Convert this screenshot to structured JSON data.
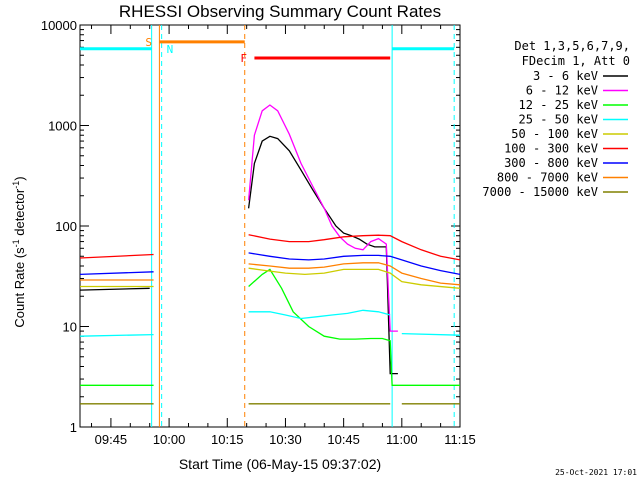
{
  "chart_data": {
    "type": "line",
    "title": "RHESSI Observing Summary Count Rates",
    "xlabel": "Start Time (06-May-15 09:37:02)",
    "ylabel_main": "Count Rate (s",
    "ylabel_sup1": "-1",
    "ylabel_mid": " detector",
    "ylabel_sup2": "-1",
    "ylabel_end": ")",
    "yscale": "log",
    "ylim": [
      1,
      10000
    ],
    "xlim_minutes": [
      37.03,
      135
    ],
    "x_ticks": [
      {
        "min": 45,
        "label": "09:45"
      },
      {
        "min": 60,
        "label": "10:00"
      },
      {
        "min": 75,
        "label": "10:15"
      },
      {
        "min": 90,
        "label": "10:30"
      },
      {
        "min": 105,
        "label": "10:45"
      },
      {
        "min": 120,
        "label": "11:00"
      },
      {
        "min": 135,
        "label": "11:15"
      }
    ],
    "y_ticks": [
      {
        "value": 1,
        "label": "1"
      },
      {
        "value": 10,
        "label": "10"
      },
      {
        "value": 100,
        "label": "100"
      },
      {
        "value": 1000,
        "label": "1000"
      },
      {
        "value": 10000,
        "label": "10000"
      }
    ],
    "legend_header": [
      "Det 1,3,5,6,7,9,",
      "FDecim 1, Att 0"
    ],
    "legend_position": "right",
    "series": [
      {
        "name": "3 - 6 keV",
        "color": "#000000",
        "points": [
          [
            37.03,
            23
          ],
          [
            55,
            24
          ],
          [
            56,
            null
          ],
          [
            80,
            null
          ],
          [
            80.5,
            150
          ],
          [
            82,
            420
          ],
          [
            84,
            700
          ],
          [
            86,
            780
          ],
          [
            88,
            740
          ],
          [
            91,
            560
          ],
          [
            94,
            360
          ],
          [
            97,
            230
          ],
          [
            100,
            150
          ],
          [
            103,
            100
          ],
          [
            105,
            85
          ],
          [
            107,
            80
          ],
          [
            109,
            74
          ],
          [
            111,
            66
          ],
          [
            113,
            62
          ],
          [
            116,
            62
          ],
          [
            117,
            3.4
          ],
          [
            119,
            3.4
          ],
          [
            119.5,
            null
          ]
        ]
      },
      {
        "name": "6 - 12 keV",
        "color": "#ff00ff",
        "points": [
          [
            80.5,
            180
          ],
          [
            82,
            800
          ],
          [
            84,
            1400
          ],
          [
            86,
            1600
          ],
          [
            88,
            1400
          ],
          [
            91,
            820
          ],
          [
            94,
            420
          ],
          [
            97,
            250
          ],
          [
            100,
            150
          ],
          [
            102,
            100
          ],
          [
            104,
            78
          ],
          [
            106,
            66
          ],
          [
            108,
            60
          ],
          [
            110,
            58
          ],
          [
            112,
            70
          ],
          [
            114,
            75
          ],
          [
            116,
            66
          ],
          [
            117,
            9
          ],
          [
            119,
            9
          ],
          [
            120,
            null
          ]
        ]
      },
      {
        "name": "12 - 25 keV",
        "color": "#00ff00",
        "points": [
          [
            37.03,
            2.6
          ],
          [
            56,
            2.6
          ],
          [
            56.5,
            null
          ],
          [
            80,
            null
          ],
          [
            80.5,
            25
          ],
          [
            84,
            33
          ],
          [
            86,
            37
          ],
          [
            89,
            24
          ],
          [
            92,
            14
          ],
          [
            96,
            10
          ],
          [
            100,
            8
          ],
          [
            104,
            7.5
          ],
          [
            108,
            7.5
          ],
          [
            112,
            7.6
          ],
          [
            115,
            7.6
          ],
          [
            117,
            7.2
          ],
          [
            117.5,
            2.6
          ],
          [
            135,
            2.6
          ]
        ]
      },
      {
        "name": "25 - 50 keV",
        "color": "#00ffff",
        "points": [
          [
            37.03,
            8
          ],
          [
            56,
            8.3
          ],
          [
            56.5,
            null
          ],
          [
            80,
            null
          ],
          [
            80.5,
            14
          ],
          [
            86,
            14
          ],
          [
            90,
            13
          ],
          [
            94,
            12
          ],
          [
            98,
            12.5
          ],
          [
            102,
            13
          ],
          [
            106,
            13.5
          ],
          [
            110,
            14.5
          ],
          [
            114,
            14
          ],
          [
            117,
            13
          ],
          [
            117.5,
            null
          ],
          [
            120,
            8.5
          ],
          [
            135,
            8.2
          ]
        ]
      },
      {
        "name": "50 - 100 keV",
        "color": "#cccc00",
        "points": [
          [
            37.03,
            25
          ],
          [
            56,
            25
          ],
          [
            56.5,
            null
          ],
          [
            80,
            null
          ],
          [
            80.5,
            38
          ],
          [
            85,
            36
          ],
          [
            90,
            34
          ],
          [
            95,
            33
          ],
          [
            100,
            34
          ],
          [
            105,
            37
          ],
          [
            110,
            37
          ],
          [
            114,
            37
          ],
          [
            117,
            34
          ],
          [
            120,
            28
          ],
          [
            125,
            26
          ],
          [
            135,
            24
          ]
        ]
      },
      {
        "name": "100 - 300 keV",
        "color": "#ff0000",
        "points": [
          [
            37.03,
            48
          ],
          [
            56,
            52
          ],
          [
            56.5,
            null
          ],
          [
            80,
            null
          ],
          [
            80.5,
            82
          ],
          [
            86,
            74
          ],
          [
            91,
            70
          ],
          [
            96,
            70
          ],
          [
            100,
            73
          ],
          [
            105,
            78
          ],
          [
            110,
            80
          ],
          [
            114,
            81
          ],
          [
            117,
            80
          ],
          [
            120,
            70
          ],
          [
            125,
            58
          ],
          [
            130,
            50
          ],
          [
            135,
            46
          ]
        ]
      },
      {
        "name": "300 - 800 keV",
        "color": "#0000ff",
        "points": [
          [
            37.03,
            33
          ],
          [
            56,
            35
          ],
          [
            56.5,
            null
          ],
          [
            80,
            null
          ],
          [
            80.5,
            54
          ],
          [
            86,
            50
          ],
          [
            91,
            47
          ],
          [
            96,
            46
          ],
          [
            100,
            47
          ],
          [
            105,
            50
          ],
          [
            110,
            51
          ],
          [
            114,
            51
          ],
          [
            117,
            50
          ],
          [
            120,
            46
          ],
          [
            125,
            40
          ],
          [
            130,
            36
          ],
          [
            135,
            33
          ]
        ]
      },
      {
        "name": "800 - 7000 keV",
        "color": "#ff8000",
        "points": [
          [
            37.03,
            29
          ],
          [
            56,
            29
          ],
          [
            56.5,
            null
          ],
          [
            80,
            null
          ],
          [
            80.5,
            42
          ],
          [
            86,
            40
          ],
          [
            91,
            38
          ],
          [
            96,
            38
          ],
          [
            100,
            39
          ],
          [
            105,
            42
          ],
          [
            110,
            43
          ],
          [
            114,
            43
          ],
          [
            117,
            40
          ],
          [
            120,
            34
          ],
          [
            125,
            30
          ],
          [
            130,
            27
          ],
          [
            135,
            26
          ]
        ]
      },
      {
        "name": "7000 - 15000 keV",
        "color": "#808000",
        "points": [
          [
            37.03,
            1.7
          ],
          [
            56,
            1.7
          ],
          [
            56.5,
            null
          ],
          [
            80,
            null
          ],
          [
            80.5,
            1.7
          ],
          [
            117,
            1.7
          ],
          [
            117.5,
            null
          ],
          [
            120,
            1.7
          ],
          [
            135,
            1.7
          ]
        ]
      }
    ],
    "markers": [
      {
        "label": "S",
        "color": "#ff8000",
        "start_min": 57.5,
        "end_min": 79.5,
        "bar_value": 6800
      },
      {
        "label": "F",
        "color": "#ff0000",
        "start_min": 82,
        "end_min": 117,
        "bar_value": 4700
      }
    ],
    "night_label": "N",
    "night_color": "#00ffff",
    "night_intervals": [
      [
        37.03,
        55.5
      ],
      [
        117.5,
        133.5
      ]
    ],
    "night_bar_value": 5800,
    "footer_date": "25-Oct-2021 17:01"
  }
}
